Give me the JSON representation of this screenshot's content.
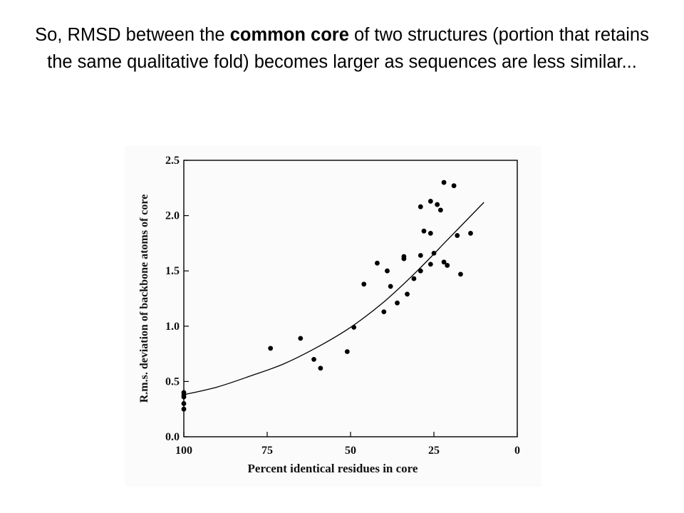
{
  "slide": {
    "title_before": "So, RMSD between the ",
    "title_bold": "common core",
    "title_after": " of two structures (portion that retains the same qualitative fold) becomes larger as sequences are less similar..."
  },
  "chart_data": {
    "type": "scatter",
    "xlabel": "Percent identical residues in core",
    "ylabel": "R.m.s. deviation of backbone atoms of core",
    "xlim": [
      100,
      0
    ],
    "ylim": [
      0.0,
      2.5
    ],
    "x_ticks": [
      "100",
      "75",
      "50",
      "25",
      "0"
    ],
    "y_ticks": [
      "0.0",
      "0.5",
      "1.0",
      "1.5",
      "2.0",
      "2.5"
    ],
    "x_tick_values": [
      100,
      75,
      50,
      25,
      0
    ],
    "y_tick_values": [
      0.0,
      0.5,
      1.0,
      1.5,
      2.0,
      2.5
    ],
    "grid": false,
    "legend": "none",
    "points": [
      {
        "x": 100,
        "y": 0.25
      },
      {
        "x": 100,
        "y": 0.3
      },
      {
        "x": 100,
        "y": 0.36
      },
      {
        "x": 100,
        "y": 0.38
      },
      {
        "x": 100,
        "y": 0.4
      },
      {
        "x": 74,
        "y": 0.8
      },
      {
        "x": 65,
        "y": 0.89
      },
      {
        "x": 61,
        "y": 0.7
      },
      {
        "x": 59,
        "y": 0.62
      },
      {
        "x": 51,
        "y": 0.77
      },
      {
        "x": 49,
        "y": 0.99
      },
      {
        "x": 46,
        "y": 1.38
      },
      {
        "x": 42,
        "y": 1.57
      },
      {
        "x": 40,
        "y": 1.13
      },
      {
        "x": 39,
        "y": 1.5
      },
      {
        "x": 38,
        "y": 1.36
      },
      {
        "x": 36,
        "y": 1.21
      },
      {
        "x": 34,
        "y": 1.61
      },
      {
        "x": 34,
        "y": 1.63
      },
      {
        "x": 33,
        "y": 1.29
      },
      {
        "x": 31,
        "y": 1.43
      },
      {
        "x": 29,
        "y": 1.5
      },
      {
        "x": 29,
        "y": 1.64
      },
      {
        "x": 29,
        "y": 2.08
      },
      {
        "x": 28,
        "y": 1.86
      },
      {
        "x": 26,
        "y": 1.84
      },
      {
        "x": 26,
        "y": 1.56
      },
      {
        "x": 26,
        "y": 2.13
      },
      {
        "x": 25,
        "y": 1.66
      },
      {
        "x": 24,
        "y": 2.1
      },
      {
        "x": 23,
        "y": 2.05
      },
      {
        "x": 22,
        "y": 1.58
      },
      {
        "x": 22,
        "y": 2.3
      },
      {
        "x": 21,
        "y": 1.55
      },
      {
        "x": 19,
        "y": 2.27
      },
      {
        "x": 18,
        "y": 1.82
      },
      {
        "x": 17,
        "y": 1.47
      },
      {
        "x": 14,
        "y": 1.84
      }
    ],
    "fit_curve": {
      "label": "",
      "x": [
        100,
        90,
        80,
        70,
        60,
        50,
        40,
        30,
        20,
        10
      ],
      "y": [
        0.38,
        0.45,
        0.55,
        0.66,
        0.81,
        0.99,
        1.22,
        1.5,
        1.81,
        2.12
      ]
    }
  }
}
